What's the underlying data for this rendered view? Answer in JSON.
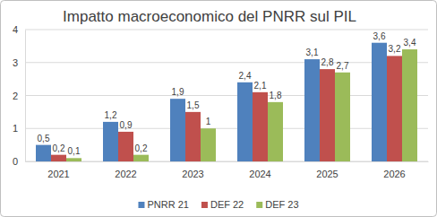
{
  "chart_data": {
    "type": "bar",
    "title": "Impatto macroeconomico del PNRR sul PIL",
    "categories": [
      "2021",
      "2022",
      "2023",
      "2024",
      "2025",
      "2026"
    ],
    "series": [
      {
        "name": "PNRR 21",
        "color": "#4f81bd",
        "values": [
          0.5,
          1.2,
          1.9,
          2.4,
          3.1,
          3.6
        ],
        "value_labels": [
          "0,5",
          "1,2",
          "1,9",
          "2,4",
          "3,1",
          "3,6"
        ]
      },
      {
        "name": "DEF 22",
        "color": "#c0504d",
        "values": [
          0.2,
          0.9,
          1.5,
          2.1,
          2.8,
          3.2
        ],
        "value_labels": [
          "0,2",
          "0,9",
          "1,5",
          "2,1",
          "2,8",
          "3,2"
        ]
      },
      {
        "name": "DEF 23",
        "color": "#9bbb59",
        "values": [
          0.1,
          0.2,
          1,
          1.8,
          2.7,
          3.4
        ],
        "value_labels": [
          "0,1",
          "0,2",
          "1",
          "1,8",
          "2,7",
          "3,4"
        ]
      }
    ],
    "ylim": [
      0,
      4
    ],
    "yticks": [
      0,
      1,
      2,
      3,
      4
    ],
    "grid": true,
    "legend": "bottom",
    "data_labels": true
  }
}
